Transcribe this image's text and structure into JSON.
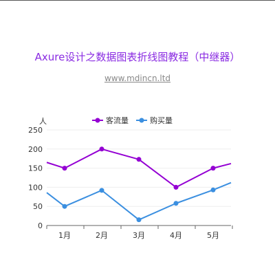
{
  "page": {
    "title": "Axure设计之数据图表折线图教程（中继器）",
    "subtitle": "www.mdincn.ltd"
  },
  "chart_data": {
    "type": "line",
    "title": "",
    "xlabel": "",
    "ylabel": "人",
    "categories": [
      "1月",
      "2月",
      "3月",
      "4月",
      "5月"
    ],
    "ylim": [
      0,
      250
    ],
    "yticks": [
      0,
      50,
      100,
      150,
      200,
      250
    ],
    "grid": true,
    "legend_position": "top-center",
    "series": [
      {
        "name": "客流量",
        "color": "#9400d3",
        "values": [
          150,
          200,
          173,
          100,
          150
        ],
        "left_edge": 165,
        "right_edge": 162
      },
      {
        "name": "购买量",
        "color": "#3b8fe0",
        "values": [
          50,
          92,
          15,
          58,
          93
        ],
        "left_edge": 86,
        "right_edge": 112
      }
    ]
  }
}
